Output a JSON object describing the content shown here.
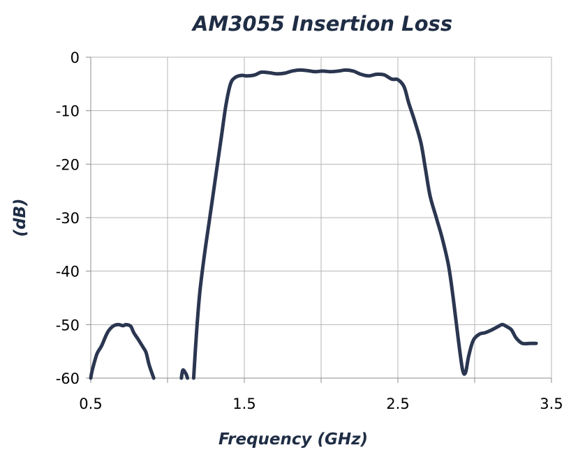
{
  "chart_data": {
    "type": "line",
    "title": "AM3055 Insertion Loss",
    "xlabel": "Frequency (GHz)",
    "ylabel": "(dB)",
    "xlim": [
      0.5,
      3.5
    ],
    "ylim": [
      -60,
      0
    ],
    "xticks": [
      0.5,
      1.5,
      2.5,
      3.5
    ],
    "yticks": [
      0,
      -10,
      -20,
      -30,
      -40,
      -50,
      -60
    ],
    "xtick_labels": [
      "0.5",
      "1.5",
      "2.5",
      "3.5"
    ],
    "ytick_labels": [
      "0",
      "-10",
      "-20",
      "-30",
      "-40",
      "-50",
      "-60"
    ],
    "x_minor_ticks": [
      1.0,
      2.0,
      3.0
    ],
    "grid": true,
    "series_color": "#2b3650",
    "series": [
      {
        "segments": [
          [
            [
              0.5,
              -60
            ],
            [
              0.51,
              -58.5
            ],
            [
              0.54,
              -55.5
            ],
            [
              0.57,
              -54
            ],
            [
              0.6,
              -52
            ],
            [
              0.62,
              -51
            ],
            [
              0.65,
              -50.2
            ],
            [
              0.68,
              -50
            ],
            [
              0.71,
              -50.2
            ],
            [
              0.73,
              -50
            ],
            [
              0.76,
              -50.3
            ],
            [
              0.78,
              -51.5
            ],
            [
              0.81,
              -52.8
            ],
            [
              0.84,
              -54.2
            ],
            [
              0.86,
              -55.2
            ],
            [
              0.88,
              -57.5
            ],
            [
              0.91,
              -60
            ]
          ],
          [
            [
              1.09,
              -60
            ],
            [
              1.1,
              -58.5
            ],
            [
              1.12,
              -59.2
            ],
            [
              1.13,
              -60
            ]
          ],
          [
            [
              1.17,
              -60
            ],
            [
              1.19,
              -51
            ],
            [
              1.21,
              -44
            ],
            [
              1.24,
              -37
            ],
            [
              1.27,
              -31
            ],
            [
              1.31,
              -23
            ],
            [
              1.35,
              -15
            ],
            [
              1.38,
              -9
            ],
            [
              1.41,
              -5
            ],
            [
              1.44,
              -3.8
            ],
            [
              1.48,
              -3.4
            ],
            [
              1.52,
              -3.5
            ],
            [
              1.57,
              -3.3
            ],
            [
              1.61,
              -2.8
            ],
            [
              1.66,
              -2.9
            ],
            [
              1.71,
              -3.1
            ],
            [
              1.76,
              -3.0
            ],
            [
              1.81,
              -2.6
            ],
            [
              1.86,
              -2.4
            ],
            [
              1.91,
              -2.5
            ],
            [
              1.96,
              -2.7
            ],
            [
              2.01,
              -2.6
            ],
            [
              2.06,
              -2.7
            ],
            [
              2.11,
              -2.6
            ],
            [
              2.16,
              -2.4
            ],
            [
              2.21,
              -2.6
            ],
            [
              2.26,
              -3.2
            ],
            [
              2.31,
              -3.5
            ],
            [
              2.36,
              -3.2
            ],
            [
              2.41,
              -3.3
            ],
            [
              2.46,
              -4.1
            ],
            [
              2.5,
              -4.2
            ],
            [
              2.54,
              -5.5
            ],
            [
              2.57,
              -8.5
            ],
            [
              2.61,
              -12
            ],
            [
              2.65,
              -16
            ],
            [
              2.68,
              -21
            ],
            [
              2.71,
              -26
            ],
            [
              2.75,
              -30
            ],
            [
              2.79,
              -34
            ],
            [
              2.83,
              -39
            ],
            [
              2.86,
              -45
            ],
            [
              2.89,
              -52
            ],
            [
              2.92,
              -58.3
            ],
            [
              2.94,
              -59
            ],
            [
              2.96,
              -56
            ],
            [
              2.99,
              -53
            ],
            [
              3.03,
              -51.8
            ],
            [
              3.07,
              -51.5
            ],
            [
              3.11,
              -51
            ],
            [
              3.15,
              -50.4
            ],
            [
              3.18,
              -50
            ],
            [
              3.21,
              -50.4
            ],
            [
              3.24,
              -51
            ],
            [
              3.27,
              -52.5
            ],
            [
              3.31,
              -53.5
            ],
            [
              3.36,
              -53.5
            ],
            [
              3.4,
              -53.5
            ]
          ]
        ]
      }
    ]
  }
}
